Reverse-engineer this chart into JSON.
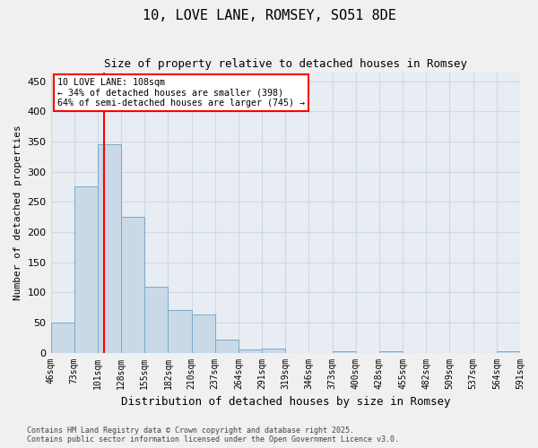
{
  "title1": "10, LOVE LANE, ROMSEY, SO51 8DE",
  "title2": "Size of property relative to detached houses in Romsey",
  "xlabel": "Distribution of detached houses by size in Romsey",
  "ylabel": "Number of detached properties",
  "tick_labels": [
    "46sqm",
    "73sqm",
    "101sqm",
    "128sqm",
    "155sqm",
    "182sqm",
    "210sqm",
    "237sqm",
    "264sqm",
    "291sqm",
    "319sqm",
    "346sqm",
    "373sqm",
    "400sqm",
    "428sqm",
    "455sqm",
    "482sqm",
    "509sqm",
    "537sqm",
    "564sqm",
    "591sqm"
  ],
  "values": [
    50,
    275,
    345,
    225,
    110,
    70,
    63,
    22,
    5,
    7,
    0,
    0,
    3,
    0,
    2,
    0,
    0,
    0,
    0,
    3
  ],
  "bar_color": "#c9d9e8",
  "bar_edge_color": "#7aaac8",
  "grid_color": "#d0d8e4",
  "background_color": "#e8edf4",
  "fig_background_color": "#f0f0f0",
  "red_line_x": 2.26,
  "annotation_text": "10 LOVE LANE: 108sqm\n← 34% of detached houses are smaller (398)\n64% of semi-detached houses are larger (745) →",
  "ylim": [
    0,
    465
  ],
  "yticks": [
    0,
    50,
    100,
    150,
    200,
    250,
    300,
    350,
    400,
    450
  ],
  "footer1": "Contains HM Land Registry data © Crown copyright and database right 2025.",
  "footer2": "Contains public sector information licensed under the Open Government Licence v3.0."
}
